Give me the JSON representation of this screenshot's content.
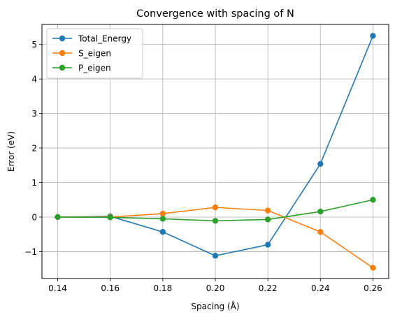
{
  "chart_data": {
    "type": "line",
    "title": "Convergence with spacing of N",
    "xlabel": "Spacing (Å)",
    "ylabel": "Error (eV)",
    "x": [
      0.14,
      0.16,
      0.18,
      0.2,
      0.22,
      0.24,
      0.26
    ],
    "xticks": [
      "0.14",
      "0.16",
      "0.18",
      "0.20",
      "0.22",
      "0.24",
      "0.26"
    ],
    "yticks": [
      -1,
      0,
      1,
      2,
      3,
      4,
      5
    ],
    "ytick_labels": [
      "−1",
      "0",
      "1",
      "2",
      "3",
      "4",
      "5"
    ],
    "xlim": [
      0.134,
      0.266
    ],
    "ylim": [
      -1.78,
      5.58
    ],
    "grid": true,
    "legend_position": "top-left",
    "series": [
      {
        "name": "Total_Energy",
        "color": "#1f77b4",
        "marker": "circle",
        "values": [
          0.0,
          0.02,
          -0.43,
          -1.12,
          -0.8,
          1.54,
          5.25
        ]
      },
      {
        "name": "S_eigen",
        "color": "#ff7f0e",
        "marker": "circle",
        "values": [
          0.0,
          0.0,
          0.1,
          0.28,
          0.19,
          -0.43,
          -1.47
        ]
      },
      {
        "name": "P_eigen",
        "color": "#2ca02c",
        "marker": "circle",
        "values": [
          0.0,
          -0.01,
          -0.05,
          -0.11,
          -0.07,
          0.16,
          0.5
        ]
      }
    ]
  }
}
